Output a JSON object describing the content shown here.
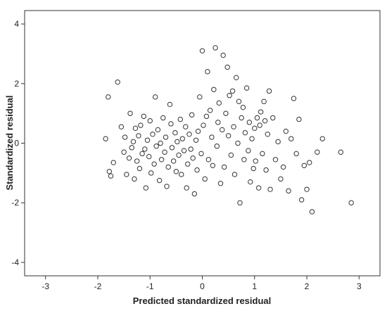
{
  "chart_data": {
    "type": "scatter",
    "xlabel": "Predicted standardized residual",
    "ylabel": "Standardized residual",
    "xlim": [
      -3.4,
      3.4
    ],
    "ylim": [
      -4.45,
      4.45
    ],
    "x_ticks": [
      -3,
      -2,
      -1,
      0,
      1,
      2,
      3
    ],
    "y_ticks": [
      -4,
      -2,
      0,
      2,
      4
    ],
    "x_tick_labels": [
      "-3",
      "-2",
      "-1",
      "0",
      "1",
      "2",
      "3"
    ],
    "y_tick_labels": [
      "-4",
      "-2",
      "0",
      "2",
      "4"
    ],
    "grid": false,
    "marker": "open-circle",
    "marker_color": "#333333",
    "points": [
      [
        -1.85,
        0.15
      ],
      [
        -1.8,
        1.55
      ],
      [
        -1.78,
        -0.95
      ],
      [
        -1.75,
        -1.1
      ],
      [
        -1.7,
        -0.65
      ],
      [
        -1.62,
        2.05
      ],
      [
        -1.55,
        0.55
      ],
      [
        -1.5,
        -0.3
      ],
      [
        -1.48,
        0.2
      ],
      [
        -1.45,
        -1.05
      ],
      [
        -1.4,
        -0.5
      ],
      [
        -1.38,
        1.0
      ],
      [
        -1.35,
        -0.15
      ],
      [
        -1.32,
        0.05
      ],
      [
        -1.3,
        -1.2
      ],
      [
        -1.28,
        0.5
      ],
      [
        -1.25,
        -0.6
      ],
      [
        -1.22,
        0.25
      ],
      [
        -1.2,
        -0.85
      ],
      [
        -1.18,
        0.6
      ],
      [
        -1.15,
        -0.35
      ],
      [
        -1.12,
        0.9
      ],
      [
        -1.1,
        -0.2
      ],
      [
        -1.08,
        -1.5
      ],
      [
        -1.05,
        0.1
      ],
      [
        -1.02,
        -0.45
      ],
      [
        -1.0,
        0.75
      ],
      [
        -0.98,
        -1.0
      ],
      [
        -0.95,
        0.3
      ],
      [
        -0.92,
        -0.7
      ],
      [
        -0.9,
        1.55
      ],
      [
        -0.88,
        -0.1
      ],
      [
        -0.85,
        0.45
      ],
      [
        -0.82,
        -1.25
      ],
      [
        -0.8,
        0.0
      ],
      [
        -0.78,
        -0.55
      ],
      [
        -0.75,
        0.85
      ],
      [
        -0.72,
        -0.3
      ],
      [
        -0.7,
        0.2
      ],
      [
        -0.68,
        -1.45
      ],
      [
        -0.65,
        -0.8
      ],
      [
        -0.62,
        1.3
      ],
      [
        -0.6,
        0.65
      ],
      [
        -0.58,
        -0.15
      ],
      [
        -0.55,
        -0.6
      ],
      [
        -0.52,
        0.35
      ],
      [
        -0.5,
        -0.95
      ],
      [
        -0.48,
        0.05
      ],
      [
        -0.45,
        -0.4
      ],
      [
        -0.42,
        0.8
      ],
      [
        -0.4,
        -1.05
      ],
      [
        -0.38,
        0.15
      ],
      [
        -0.35,
        -0.25
      ],
      [
        -0.32,
        0.55
      ],
      [
        -0.3,
        -1.5
      ],
      [
        -0.28,
        -0.7
      ],
      [
        -0.25,
        0.3
      ],
      [
        -0.22,
        -0.2
      ],
      [
        -0.2,
        0.95
      ],
      [
        -0.18,
        -0.5
      ],
      [
        -0.15,
        -1.7
      ],
      [
        -0.12,
        0.1
      ],
      [
        -0.1,
        -0.9
      ],
      [
        -0.08,
        0.4
      ],
      [
        -0.05,
        1.55
      ],
      [
        -0.02,
        -0.35
      ],
      [
        0.0,
        3.1
      ],
      [
        0.02,
        0.6
      ],
      [
        0.05,
        -1.2
      ],
      [
        0.08,
        0.9
      ],
      [
        0.1,
        2.4
      ],
      [
        0.12,
        -0.55
      ],
      [
        0.15,
        1.1
      ],
      [
        0.18,
        0.2
      ],
      [
        0.2,
        -0.75
      ],
      [
        0.22,
        1.8
      ],
      [
        0.25,
        3.2
      ],
      [
        0.28,
        -0.1
      ],
      [
        0.3,
        0.7
      ],
      [
        0.32,
        1.35
      ],
      [
        0.35,
        -1.35
      ],
      [
        0.38,
        0.45
      ],
      [
        0.4,
        2.95
      ],
      [
        0.42,
        -0.8
      ],
      [
        0.45,
        1.0
      ],
      [
        0.48,
        2.55
      ],
      [
        0.5,
        0.25
      ],
      [
        0.52,
        1.6
      ],
      [
        0.55,
        -0.4
      ],
      [
        0.58,
        1.75
      ],
      [
        0.6,
        0.55
      ],
      [
        0.62,
        -1.05
      ],
      [
        0.65,
        2.2
      ],
      [
        0.68,
        0.0
      ],
      [
        0.7,
        1.4
      ],
      [
        0.72,
        -2.0
      ],
      [
        0.75,
        0.85
      ],
      [
        0.78,
        1.2
      ],
      [
        0.8,
        -0.55
      ],
      [
        0.82,
        0.35
      ],
      [
        0.85,
        1.85
      ],
      [
        0.88,
        -0.25
      ],
      [
        0.9,
        0.7
      ],
      [
        0.92,
        -1.3
      ],
      [
        0.95,
        0.15
      ],
      [
        0.98,
        -0.85
      ],
      [
        1.0,
        0.5
      ],
      [
        1.02,
        -0.6
      ],
      [
        1.05,
        0.85
      ],
      [
        1.08,
        -1.5
      ],
      [
        1.1,
        0.6
      ],
      [
        1.12,
        1.05
      ],
      [
        1.15,
        -0.35
      ],
      [
        1.18,
        1.4
      ],
      [
        1.2,
        0.75
      ],
      [
        1.22,
        -0.9
      ],
      [
        1.25,
        0.3
      ],
      [
        1.28,
        1.75
      ],
      [
        1.3,
        -1.55
      ],
      [
        1.35,
        0.85
      ],
      [
        1.4,
        -0.55
      ],
      [
        1.45,
        0.05
      ],
      [
        1.5,
        -1.2
      ],
      [
        1.55,
        -0.8
      ],
      [
        1.6,
        0.4
      ],
      [
        1.65,
        -1.6
      ],
      [
        1.7,
        0.15
      ],
      [
        1.75,
        1.5
      ],
      [
        1.8,
        -0.35
      ],
      [
        1.85,
        0.8
      ],
      [
        1.9,
        -1.9
      ],
      [
        1.95,
        -0.75
      ],
      [
        2.0,
        -1.55
      ],
      [
        2.05,
        -0.65
      ],
      [
        2.1,
        -2.3
      ],
      [
        2.2,
        -0.3
      ],
      [
        2.3,
        0.15
      ],
      [
        2.65,
        -0.3
      ],
      [
        2.85,
        -2.0
      ]
    ]
  }
}
